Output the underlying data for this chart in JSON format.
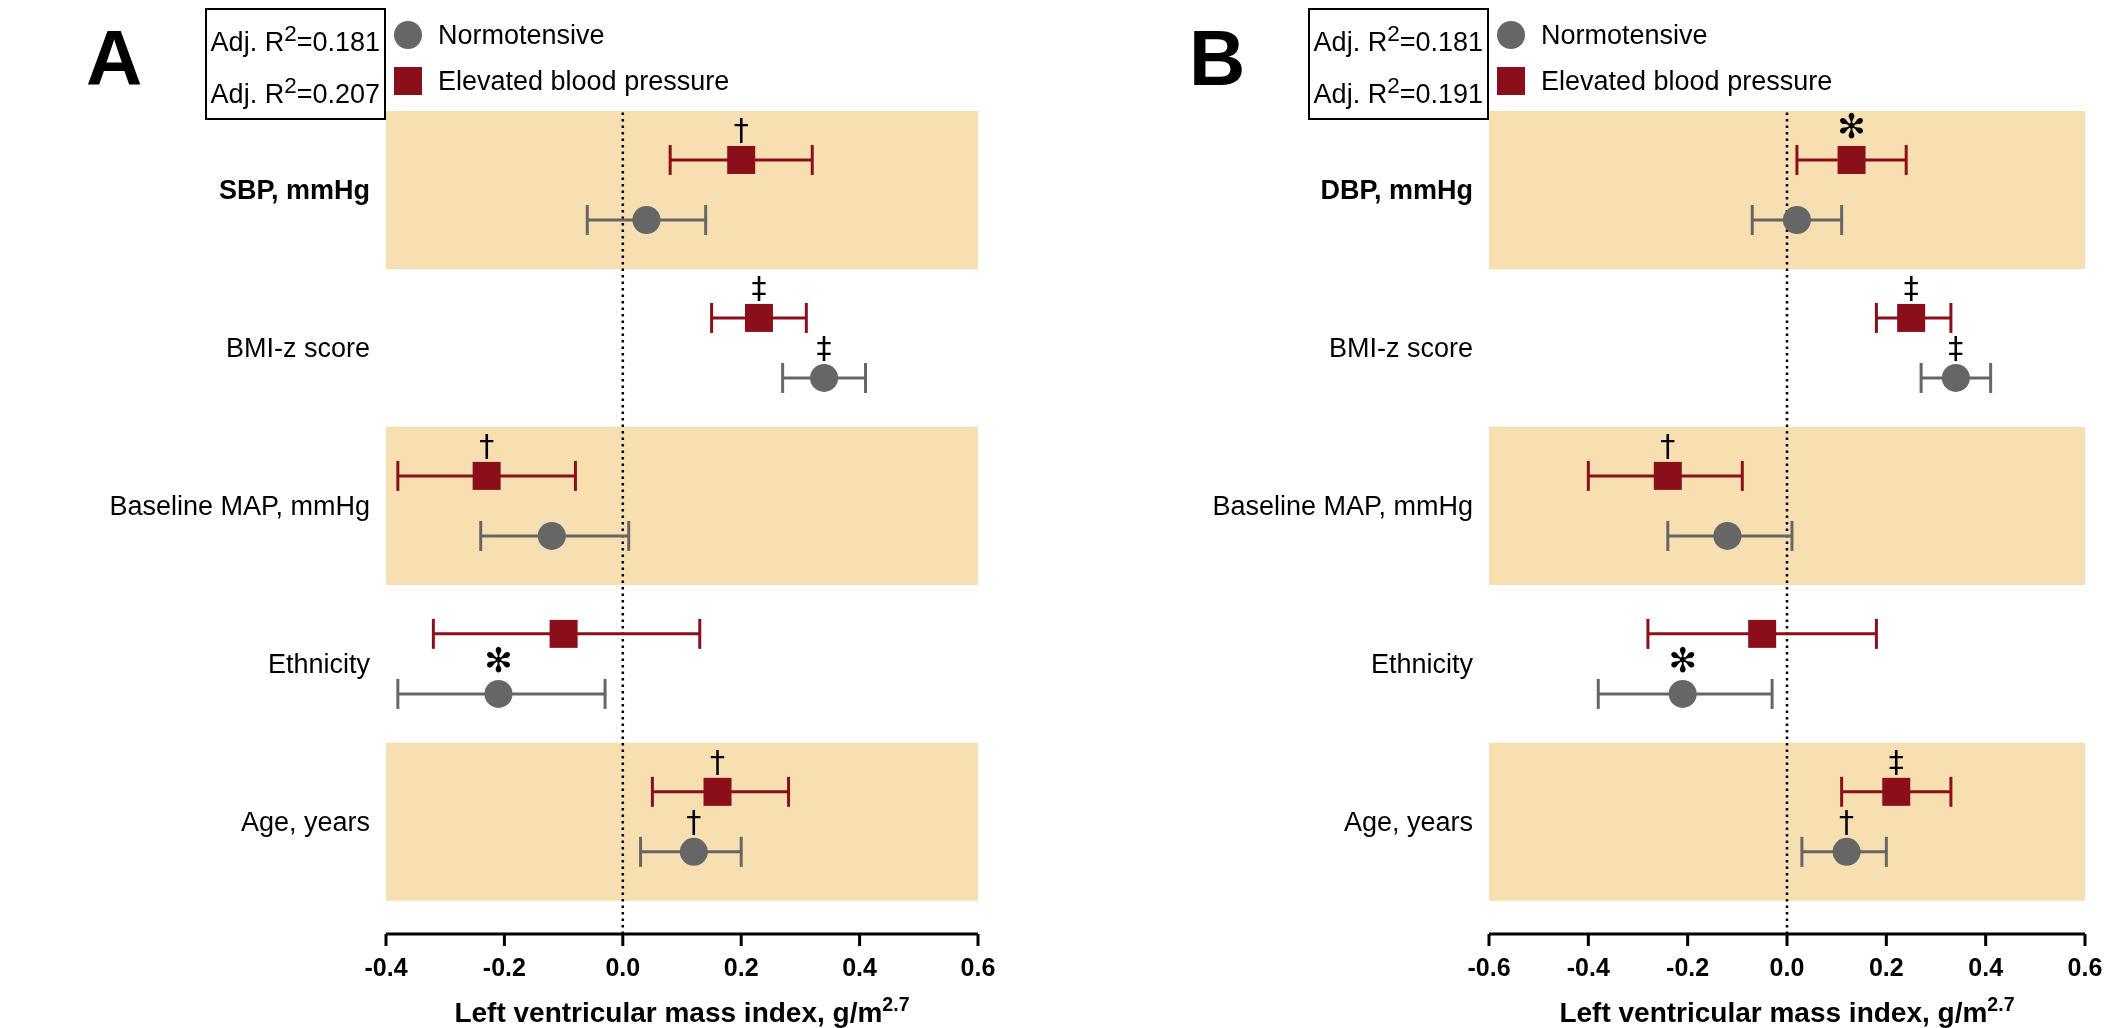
{
  "chart_data": [
    {
      "type": "scatter",
      "title": "A",
      "orientation": "horizontal",
      "legend": "top",
      "xlabel": "Left ventricular mass index, g/m$^{2.7}$",
      "categories": [
        "SBP, mmHg",
        "BMI-z score",
        "Baseline MAP, mmHg",
        "Ethnicity",
        "Age, years"
      ],
      "series": [
        {
          "name": "Normotensive",
          "color": "#666666",
          "marker": "circle",
          "values": [
            0.04,
            0.34,
            -0.12,
            -0.21,
            0.12
          ],
          "value_labels": [
            null,
            "‡",
            null,
            "✻",
            "†"
          ],
          "errors": [
            [
              -0.06,
              0.14
            ],
            [
              0.27,
              0.41
            ],
            [
              -0.24,
              0.01
            ],
            [
              -0.38,
              -0.03
            ],
            [
              0.03,
              0.2
            ]
          ]
        },
        {
          "name": "Elevated blood pressure",
          "color": "#8b0f1a",
          "marker": "square",
          "values": [
            0.2,
            0.23,
            -0.23,
            -0.1,
            0.16
          ],
          "value_labels": [
            "†",
            "‡",
            "†",
            null,
            "†"
          ],
          "errors": [
            [
              0.08,
              0.32
            ],
            [
              0.15,
              0.31
            ],
            [
              -0.38,
              -0.08
            ],
            [
              -0.32,
              0.13
            ],
            [
              0.05,
              0.28
            ]
          ]
        }
      ],
      "xlim": [
        -0.4,
        0.6
      ],
      "xticks": [
        -0.4,
        -0.2,
        {
          "value": 0,
          "label": "0.0"
        },
        0.2,
        0.4,
        0.6
      ],
      "ref_lines": [
        {
          "axis": "x",
          "value": 0,
          "line_style": "dotted",
          "color": "#000000"
        }
      ],
      "bands": [
        {
          "axis": "y",
          "from": "SBP, mmHg",
          "to": "SBP, mmHg",
          "color": "#f8dfb1"
        },
        {
          "axis": "y",
          "from": "Baseline MAP, mmHg",
          "to": "Baseline MAP, mmHg",
          "color": "#f8dfb1"
        },
        {
          "axis": "y",
          "from": "Age, years",
          "to": "Age, years",
          "color": "#f8dfb1"
        }
      ],
      "annotations": [
        "Adj. R$^{2}$=0.181",
        "Adj. R$^{2}$=0.207"
      ]
    },
    {
      "type": "scatter",
      "title": "B",
      "orientation": "horizontal",
      "legend": "top",
      "xlabel": "Left ventricular mass index, g/m$^{2.7}$",
      "categories": [
        "DBP, mmHg",
        "BMI-z score",
        "Baseline MAP, mmHg",
        "Ethnicity",
        "Age, years"
      ],
      "series": [
        {
          "name": "Normotensive",
          "color": "#666666",
          "marker": "circle",
          "values": [
            0.02,
            0.34,
            -0.12,
            -0.21,
            0.12
          ],
          "value_labels": [
            null,
            "‡",
            null,
            "✻",
            "†"
          ],
          "errors": [
            [
              -0.07,
              0.11
            ],
            [
              0.27,
              0.41
            ],
            [
              -0.24,
              0.01
            ],
            [
              -0.38,
              -0.03
            ],
            [
              0.03,
              0.2
            ]
          ]
        },
        {
          "name": "Elevated blood pressure",
          "color": "#8b0f1a",
          "marker": "square",
          "values": [
            0.13,
            0.25,
            -0.24,
            -0.05,
            0.22
          ],
          "value_labels": [
            "✻",
            "‡",
            "†",
            null,
            "‡"
          ],
          "errors": [
            [
              0.02,
              0.24
            ],
            [
              0.18,
              0.33
            ],
            [
              -0.4,
              -0.09
            ],
            [
              -0.28,
              0.18
            ],
            [
              0.11,
              0.33
            ]
          ]
        }
      ],
      "xlim": [
        -0.6,
        0.6
      ],
      "xticks": [
        -0.6,
        -0.4,
        -0.2,
        {
          "value": 0,
          "label": "0.0"
        },
        0.2,
        0.4,
        0.6
      ],
      "ref_lines": [
        {
          "axis": "x",
          "value": 0,
          "line_style": "dotted",
          "color": "#000000"
        }
      ],
      "bands": [
        {
          "axis": "y",
          "from": "DBP, mmHg",
          "to": "DBP, mmHg",
          "color": "#f8dfb1"
        },
        {
          "axis": "y",
          "from": "Baseline MAP, mmHg",
          "to": "Baseline MAP, mmHg",
          "color": "#f8dfb1"
        },
        {
          "axis": "y",
          "from": "Age, years",
          "to": "Age, years",
          "color": "#f8dfb1"
        }
      ],
      "annotations": [
        "Adj. R$^{2}$=0.181",
        "Adj. R$^{2}$=0.191"
      ]
    }
  ]
}
